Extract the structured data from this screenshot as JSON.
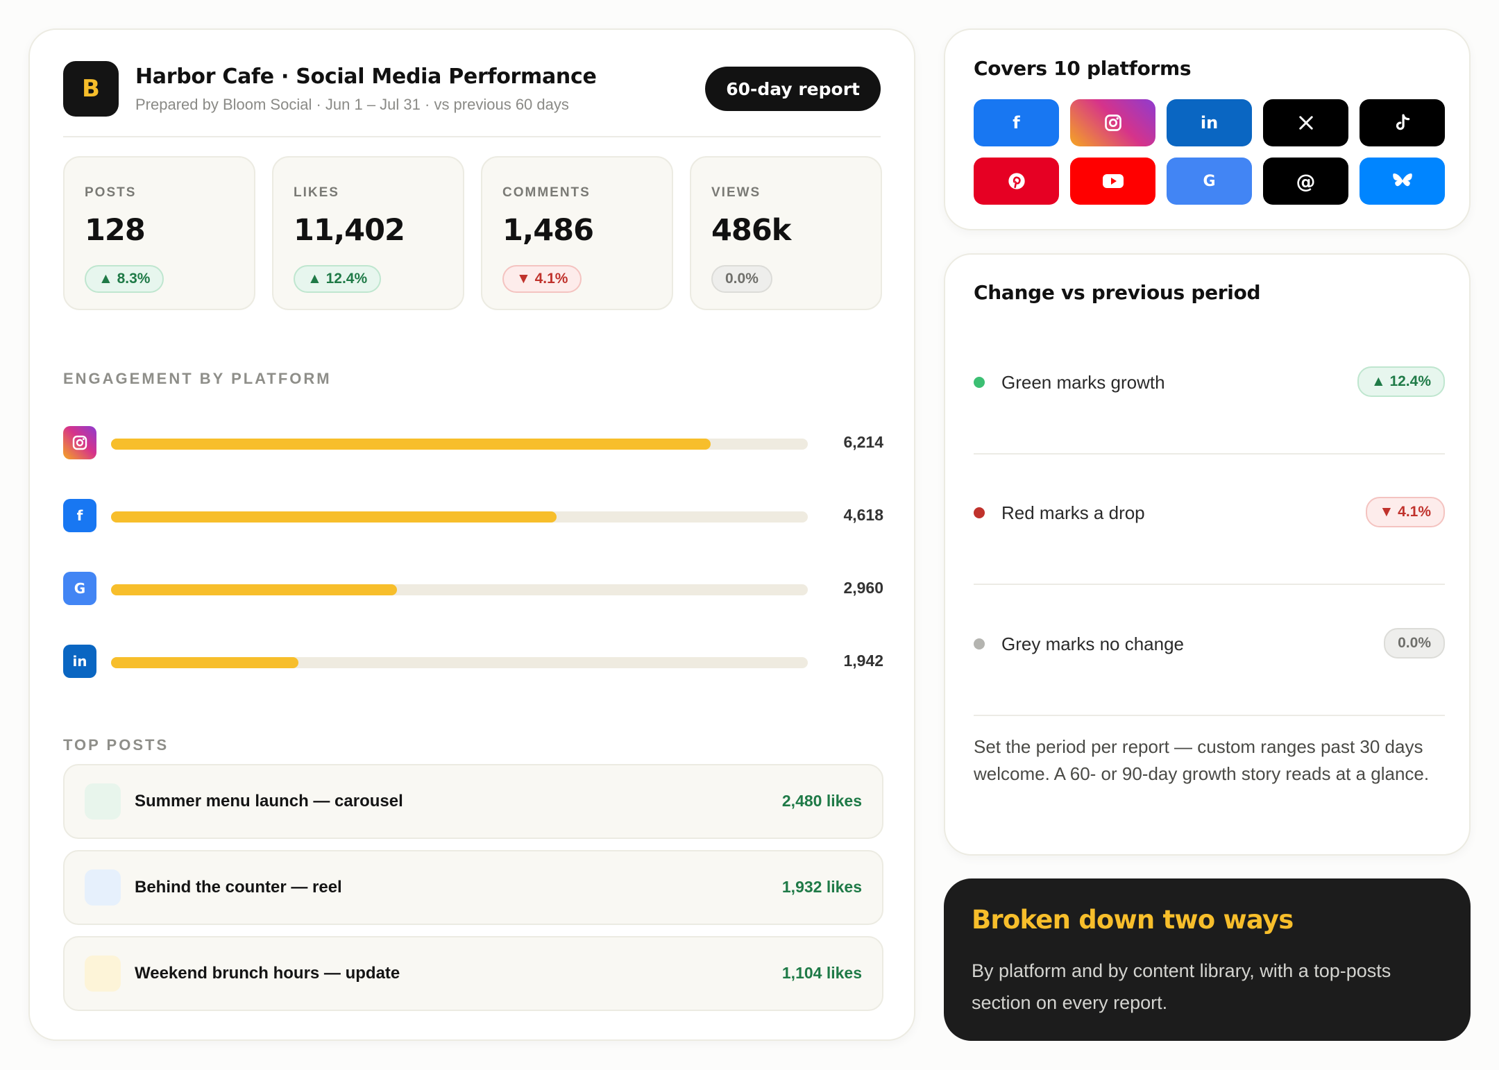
{
  "header": {
    "logo_letter": "B",
    "title": "Harbor Cafe · Social Media Performance",
    "subtitle": "Prepared by Bloom Social · Jun 1 – Jul 31 · vs previous 60 days",
    "period_badge": "60-day report"
  },
  "kpis": [
    {
      "label": "POSTS",
      "value": "128",
      "change": "▲ 8.3%",
      "trend": "up"
    },
    {
      "label": "LIKES",
      "value": "11,402",
      "change": "▲ 12.4%",
      "trend": "up"
    },
    {
      "label": "COMMENTS",
      "value": "1,486",
      "change": "▼ 4.1%",
      "trend": "down"
    },
    {
      "label": "VIEWS",
      "value": "486k",
      "change": "0.0%",
      "trend": "flat"
    }
  ],
  "engagement": {
    "label": "ENGAGEMENT BY PLATFORM",
    "max_value": 7220,
    "rows": [
      {
        "platform_icon": "instagram-icon",
        "value": 6214,
        "display": "6,214"
      },
      {
        "platform_icon": "facebook-icon",
        "value": 4618,
        "display": "4,618"
      },
      {
        "platform_icon": "google-business-icon",
        "value": 2960,
        "display": "2,960"
      },
      {
        "platform_icon": "linkedin-icon",
        "value": 1942,
        "display": "1,942"
      }
    ]
  },
  "top_posts": {
    "label": "TOP POSTS",
    "items": [
      {
        "title": "Summer menu launch — carousel",
        "likes": "2,480 likes",
        "thumb_color": "#e8f5ec"
      },
      {
        "title": "Behind the counter — reel",
        "likes": "1,932 likes",
        "thumb_color": "#e6f0fc"
      },
      {
        "title": "Weekend brunch hours — update",
        "likes": "1,104 likes",
        "thumb_color": "#fdf4d8"
      }
    ]
  },
  "platforms": {
    "title": "Covers 10 platforms",
    "tiles": [
      {
        "icon": "facebook-icon",
        "glyph": "f",
        "color": "#1877f2"
      },
      {
        "icon": "instagram-icon",
        "glyph": "",
        "color": "#d6338a"
      },
      {
        "icon": "linkedin-icon",
        "glyph": "in",
        "color": "#0a66c2"
      },
      {
        "icon": "x-icon",
        "glyph": "𝕏",
        "color": "#000000"
      },
      {
        "icon": "tiktok-icon",
        "glyph": "♪",
        "color": "#000000"
      },
      {
        "icon": "pinterest-icon",
        "glyph": "",
        "color": "#e60023"
      },
      {
        "icon": "youtube-icon",
        "glyph": "",
        "color": "#ff0000"
      },
      {
        "icon": "google-business-icon",
        "glyph": "G",
        "color": "#4285f4"
      },
      {
        "icon": "threads-icon",
        "glyph": "@",
        "color": "#000000"
      },
      {
        "icon": "bluesky-icon",
        "glyph": "",
        "color": "#0085ff"
      }
    ]
  },
  "change": {
    "title": "Change vs previous period",
    "legend": [
      {
        "text": "Green marks growth",
        "chip": "▲ 12.4%",
        "trend": "up",
        "dot_color": "#3cbf73"
      },
      {
        "text": "Red marks a drop",
        "chip": "▼ 4.1%",
        "trend": "down",
        "dot_color": "#c0322c"
      },
      {
        "text": "Grey marks no change",
        "chip": "0.0%",
        "trend": "flat",
        "dot_color": "#b4b4b0"
      }
    ],
    "note": "Set the period per report — custom ranges past 30 days welcome. A 60- or 90-day growth story reads at a glance."
  },
  "breakdown": {
    "title": "Broken down two ways",
    "text": "By platform and by content library, with a top-posts section on every report."
  },
  "colors": {
    "accent": "#f7be2b",
    "up": "#1f7a47",
    "down": "#c0322c",
    "flat": "#6f6f6b"
  }
}
